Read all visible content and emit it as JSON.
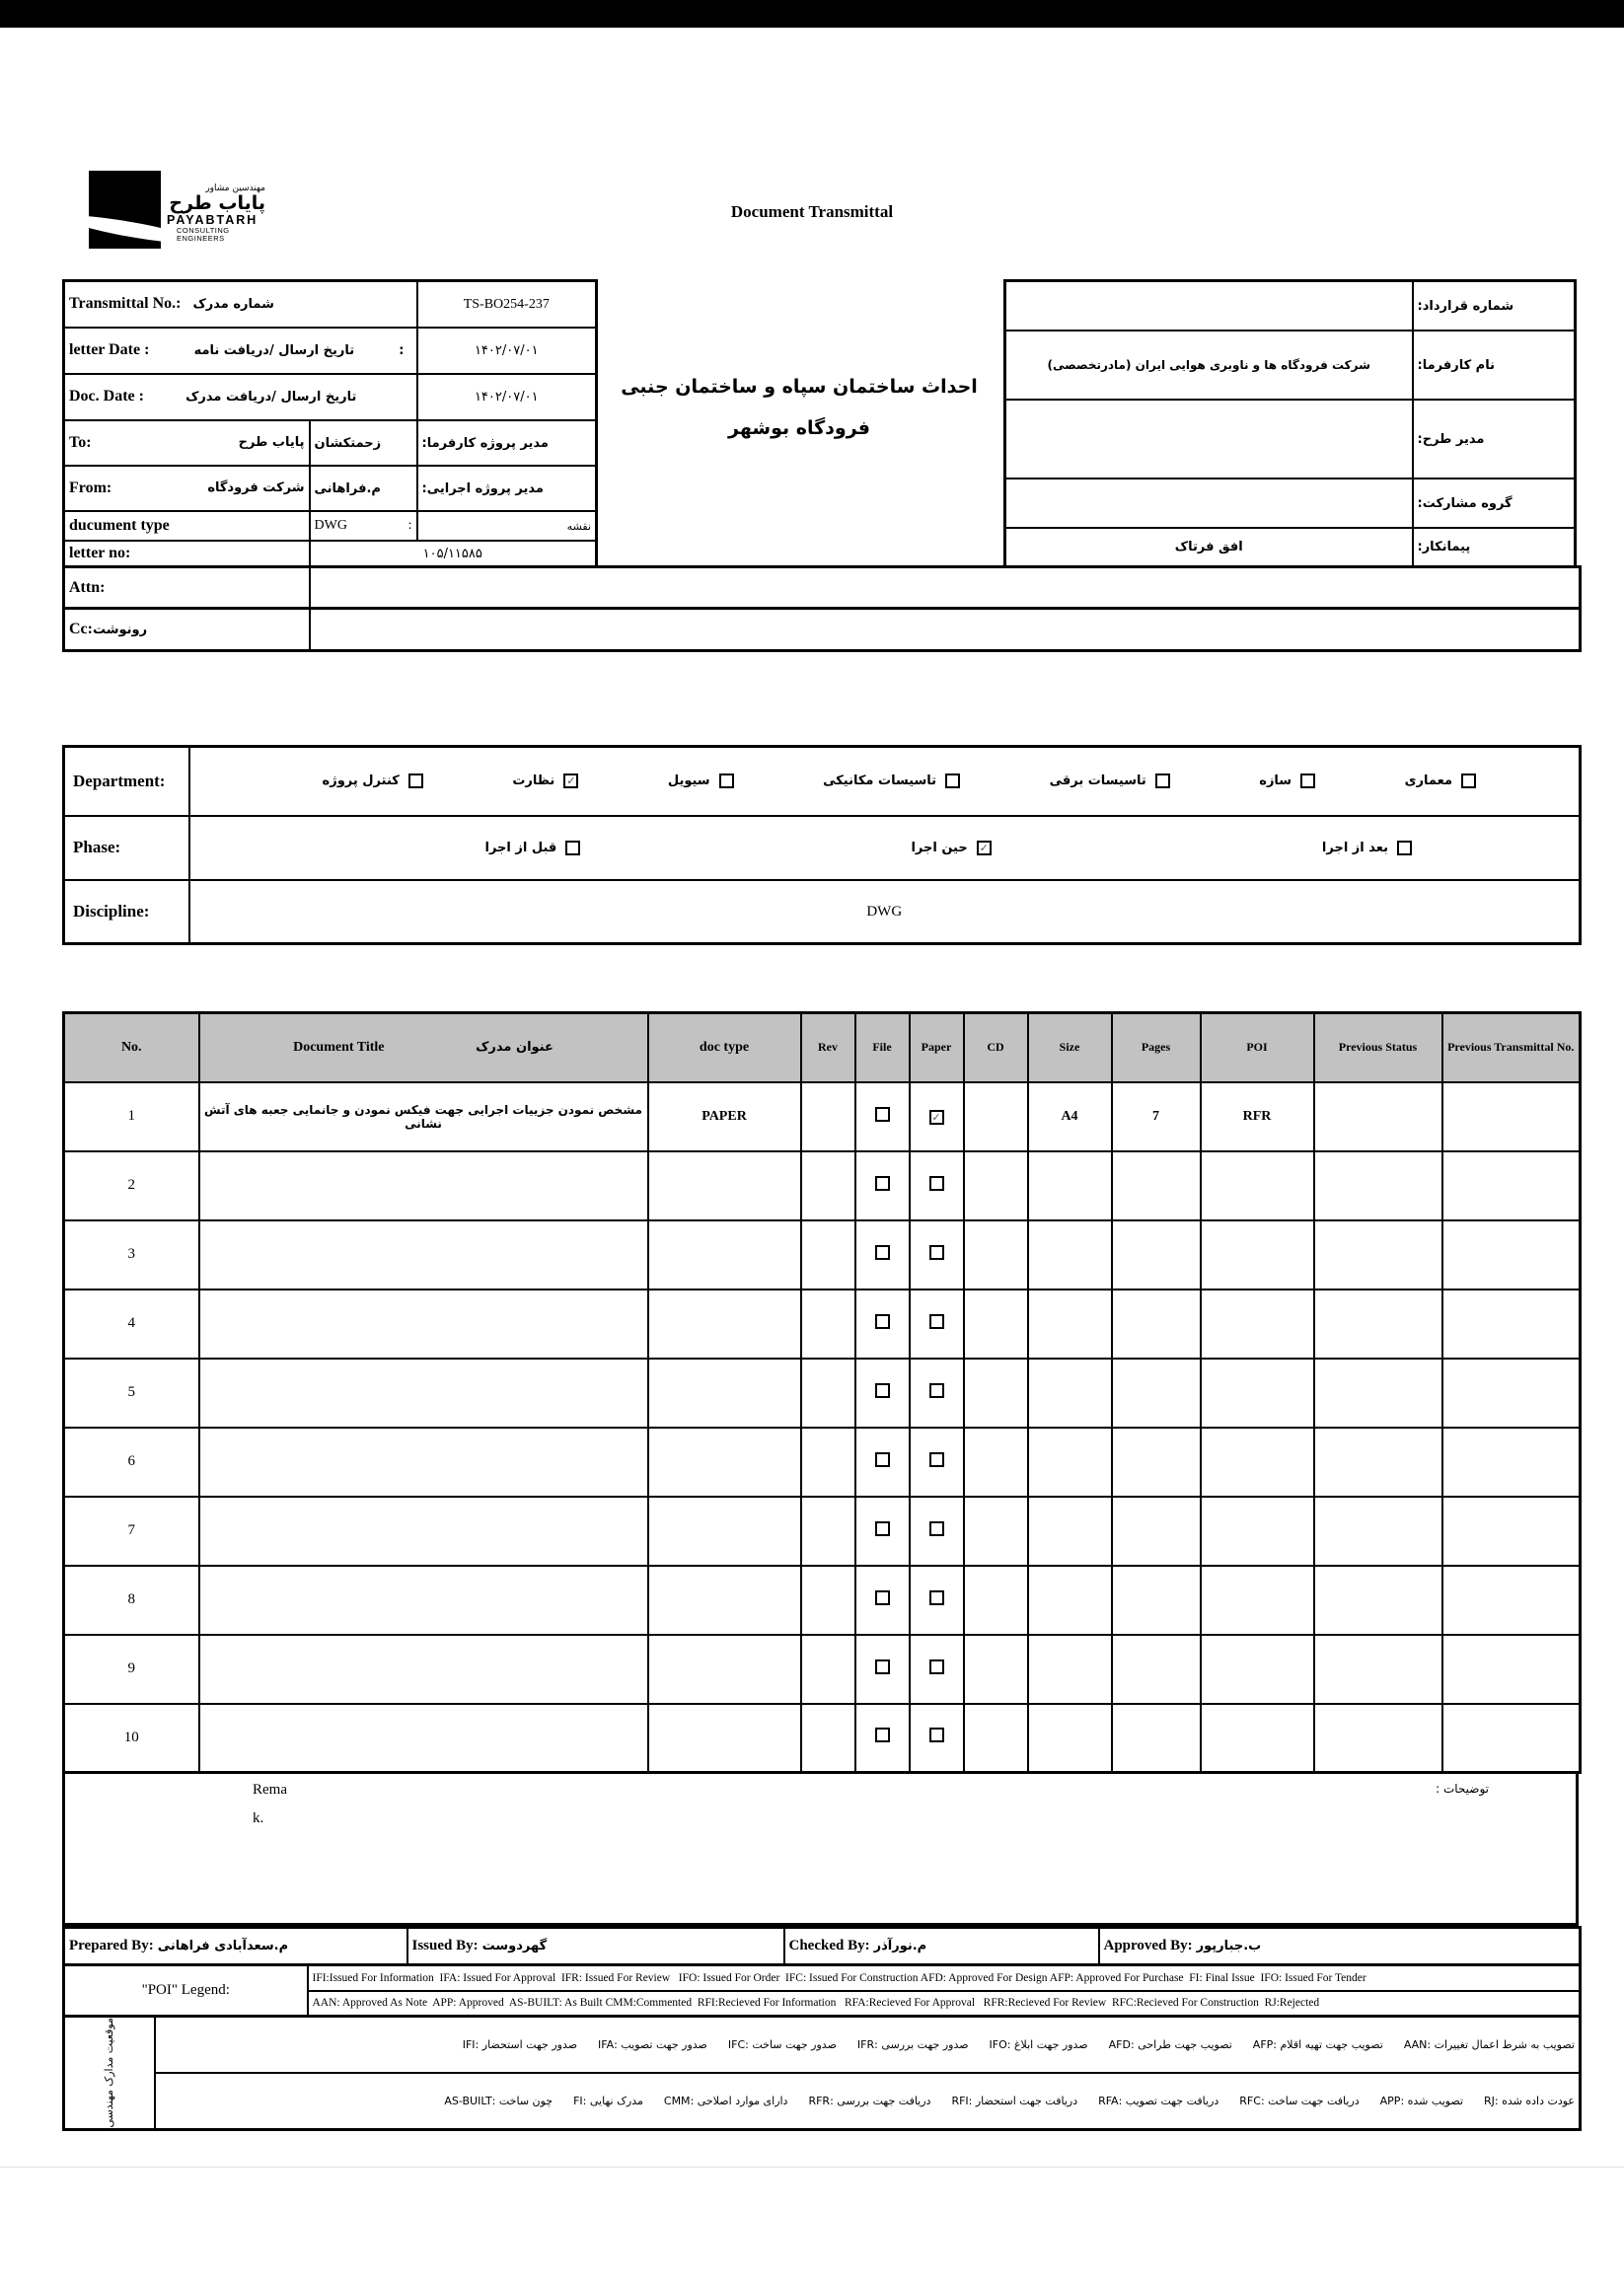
{
  "colors": {
    "top_bar": "#000000",
    "table_header_bg": "#c2c2c2",
    "border": "#000000"
  },
  "logo": {
    "fa_tagline": "مهندسین مشاور",
    "fa_name": "پایاب طرح",
    "en_name": "PAYABTARH",
    "en_tagline": "CONSULTING ENGINEERS"
  },
  "heading": "Document Transmittal",
  "header": {
    "transmittal": {
      "en": "Transmittal No.:",
      "fa": "شماره مدرک",
      "value": "TS-BO254-237"
    },
    "letter_date": {
      "en": "letter Date  :",
      "fa": "تاریخ ارسال /دریافت نامه",
      "colon": ":",
      "value": "۱۴۰۲/۰۷/۰۱"
    },
    "doc_date": {
      "en": "Doc. Date :",
      "fa": "تاریخ ارسال /دریافت مدرک",
      "value": "۱۴۰۲/۰۷/۰۱"
    },
    "to": {
      "en": "To:",
      "fa": "پایاب طرح",
      "mid": "زحمتکشان",
      "right_label": "مدیر پروژه کارفرما:"
    },
    "from": {
      "en": "From:",
      "fa": "شرکت فرودگاه",
      "mid": "م.فراهانی",
      "right_label": "مدیر پروژه اجرایی:"
    },
    "doc_type": {
      "en": "ducument type",
      "value": "DWG",
      "colon": ":",
      "fa": "نقشه"
    },
    "letter_no": {
      "en": "letter no:",
      "value": "۱۰۵/۱۱۵۸۵"
    },
    "attn": {
      "en": "Attn:"
    },
    "cc": {
      "en": "Cc:",
      "fa": "رونوشت"
    },
    "project_title_line1": "احداث ساختمان سپاه و ساختمان جنبی",
    "project_title_line2": "فرودگاه بوشهر",
    "contract_no_label": "شماره قرارداد:",
    "client_label": "نام کارفرما:",
    "client_value": "شرکت فرودگاه ها و ناوبری هوایی ایران (مادرتخصصی)",
    "design_manager_label": "مدیر طرح:",
    "partnership_label": "گروه مشارکت:",
    "contractor_label": "پیمانکار:",
    "contractor_value": "افق فرتاک"
  },
  "filters": {
    "department_label": "Department:",
    "department_options": [
      {
        "label": "معماری",
        "checked": false
      },
      {
        "label": "سازه",
        "checked": false
      },
      {
        "label": "تاسیسات برقی",
        "checked": false
      },
      {
        "label": "تاسیسات مکانیکی",
        "checked": false
      },
      {
        "label": "سیویل",
        "checked": false
      },
      {
        "label": "نظارت",
        "checked": true
      },
      {
        "label": "کنترل پروژه",
        "checked": false
      }
    ],
    "phase_label": "Phase:",
    "phase_options": [
      {
        "label": "بعد از اجرا",
        "checked": false
      },
      {
        "label": "حین اجرا",
        "checked": true
      },
      {
        "label": "قبل از اجرا",
        "checked": false
      }
    ],
    "discipline_label": "Discipline:",
    "discipline_value": "DWG"
  },
  "doc_table": {
    "headers": {
      "no": "No.",
      "title_en": "Document Title",
      "title_fa": "عنوان مدرک",
      "doc_type": "doc type",
      "rev": "Rev",
      "file": "File",
      "paper": "Paper",
      "cd": "CD",
      "size": "Size",
      "pages": "Pages",
      "poi": "POI",
      "prev_status": "Previous Status",
      "prev_transmittal": "Previous Transmittal No."
    },
    "rows": [
      {
        "no": "1",
        "title": "مشخص نمودن جزییات اجرایی جهت فیکس نمودن و جانمایی جعبه های آتش نشانی",
        "doc_type": "PAPER",
        "rev": "",
        "file": "unchecked",
        "paper": "checked",
        "cd": "",
        "size": "A4",
        "pages": "7",
        "poi": "RFR",
        "prev_status": "",
        "prev_transmittal": ""
      },
      {
        "no": "2",
        "title": "",
        "doc_type": "",
        "rev": "",
        "file": "unchecked",
        "paper": "unchecked",
        "cd": "",
        "size": "",
        "pages": "",
        "poi": "",
        "prev_status": "",
        "prev_transmittal": ""
      },
      {
        "no": "3",
        "title": "",
        "doc_type": "",
        "rev": "",
        "file": "unchecked",
        "paper": "unchecked",
        "cd": "",
        "size": "",
        "pages": "",
        "poi": "",
        "prev_status": "",
        "prev_transmittal": ""
      },
      {
        "no": "4",
        "title": "",
        "doc_type": "",
        "rev": "",
        "file": "unchecked",
        "paper": "unchecked",
        "cd": "",
        "size": "",
        "pages": "",
        "poi": "",
        "prev_status": "",
        "prev_transmittal": ""
      },
      {
        "no": "5",
        "title": "",
        "doc_type": "",
        "rev": "",
        "file": "unchecked",
        "paper": "unchecked",
        "cd": "",
        "size": "",
        "pages": "",
        "poi": "",
        "prev_status": "",
        "prev_transmittal": ""
      },
      {
        "no": "6",
        "title": "",
        "doc_type": "",
        "rev": "",
        "file": "unchecked",
        "paper": "unchecked",
        "cd": "",
        "size": "",
        "pages": "",
        "poi": "",
        "prev_status": "",
        "prev_transmittal": ""
      },
      {
        "no": "7",
        "title": "",
        "doc_type": "",
        "rev": "",
        "file": "unchecked",
        "paper": "unchecked",
        "cd": "",
        "size": "",
        "pages": "",
        "poi": "",
        "prev_status": "",
        "prev_transmittal": ""
      },
      {
        "no": "8",
        "title": "",
        "doc_type": "",
        "rev": "",
        "file": "unchecked",
        "paper": "unchecked",
        "cd": "",
        "size": "",
        "pages": "",
        "poi": "",
        "prev_status": "",
        "prev_transmittal": ""
      },
      {
        "no": "9",
        "title": "",
        "doc_type": "",
        "rev": "",
        "file": "unchecked",
        "paper": "unchecked",
        "cd": "",
        "size": "",
        "pages": "",
        "poi": "",
        "prev_status": "",
        "prev_transmittal": ""
      },
      {
        "no": "10",
        "title": "",
        "doc_type": "",
        "rev": "",
        "file": "unchecked",
        "paper": "unchecked",
        "cd": "",
        "size": "",
        "pages": "",
        "poi": "",
        "prev_status": "",
        "prev_transmittal": ""
      }
    ]
  },
  "remarks": {
    "fragment_line1": "Rema",
    "fragment_line2": "k.",
    "fa_label": "توضیحات :"
  },
  "signatures": {
    "prepared_label": "Prepared By:",
    "prepared_value": "م.سعدآبادی فراهانی",
    "issued_label": "Issued By:",
    "issued_value": "گهردوست",
    "checked_label": "Checked By:",
    "checked_value": "م.نورآذر",
    "approved_label": "Approved By:",
    "approved_value": "ب.جبارپور"
  },
  "poi_legend": {
    "label": "\"POI\" Legend:",
    "line1": "IFI:Issued For Information  IFA: Issued For Approval  IFR: Issued For Review   IFO: Issued For Order  IFC: Issued For Construction AFD: Approved For Design AFP: Approved For Purchase  FI: Final Issue  IFO: Issued For Tender",
    "line2": "AAN: Approved As Note  APP: Approved  AS-BUILT: As Built CMM:Commented  RFI:Recieved For Information   RFA:Recieved For Approval   RFR:Recieved For Review  RFC:Recieved For Construction  RJ:Rejected"
  },
  "fa_legend": {
    "label": "موقعیت مدارک مهندسی",
    "line1": "تصویب به شرط اعمال تغییرات :AAN      تصویب جهت تهیه اقلام :AFP      تصویب جهت طراحی :AFD      صدور جهت ابلاغ :IFO      صدور جهت بررسی :IFR      صدور جهت ساخت :IFC      صدور جهت تصویب :IFA      صدور جهت استحضار :IFI",
    "line2": "عودت داده شده :RJ      تصویب شده :APP      دریافت جهت ساخت :RFC      دریافت جهت تصویب :RFA      دریافت جهت استحضار :RFI      دریافت جهت بررسی :RFR      دارای موارد اصلاحی :CMM      مدرک نهایی :FI      چون ساخت :AS-BUILT"
  }
}
